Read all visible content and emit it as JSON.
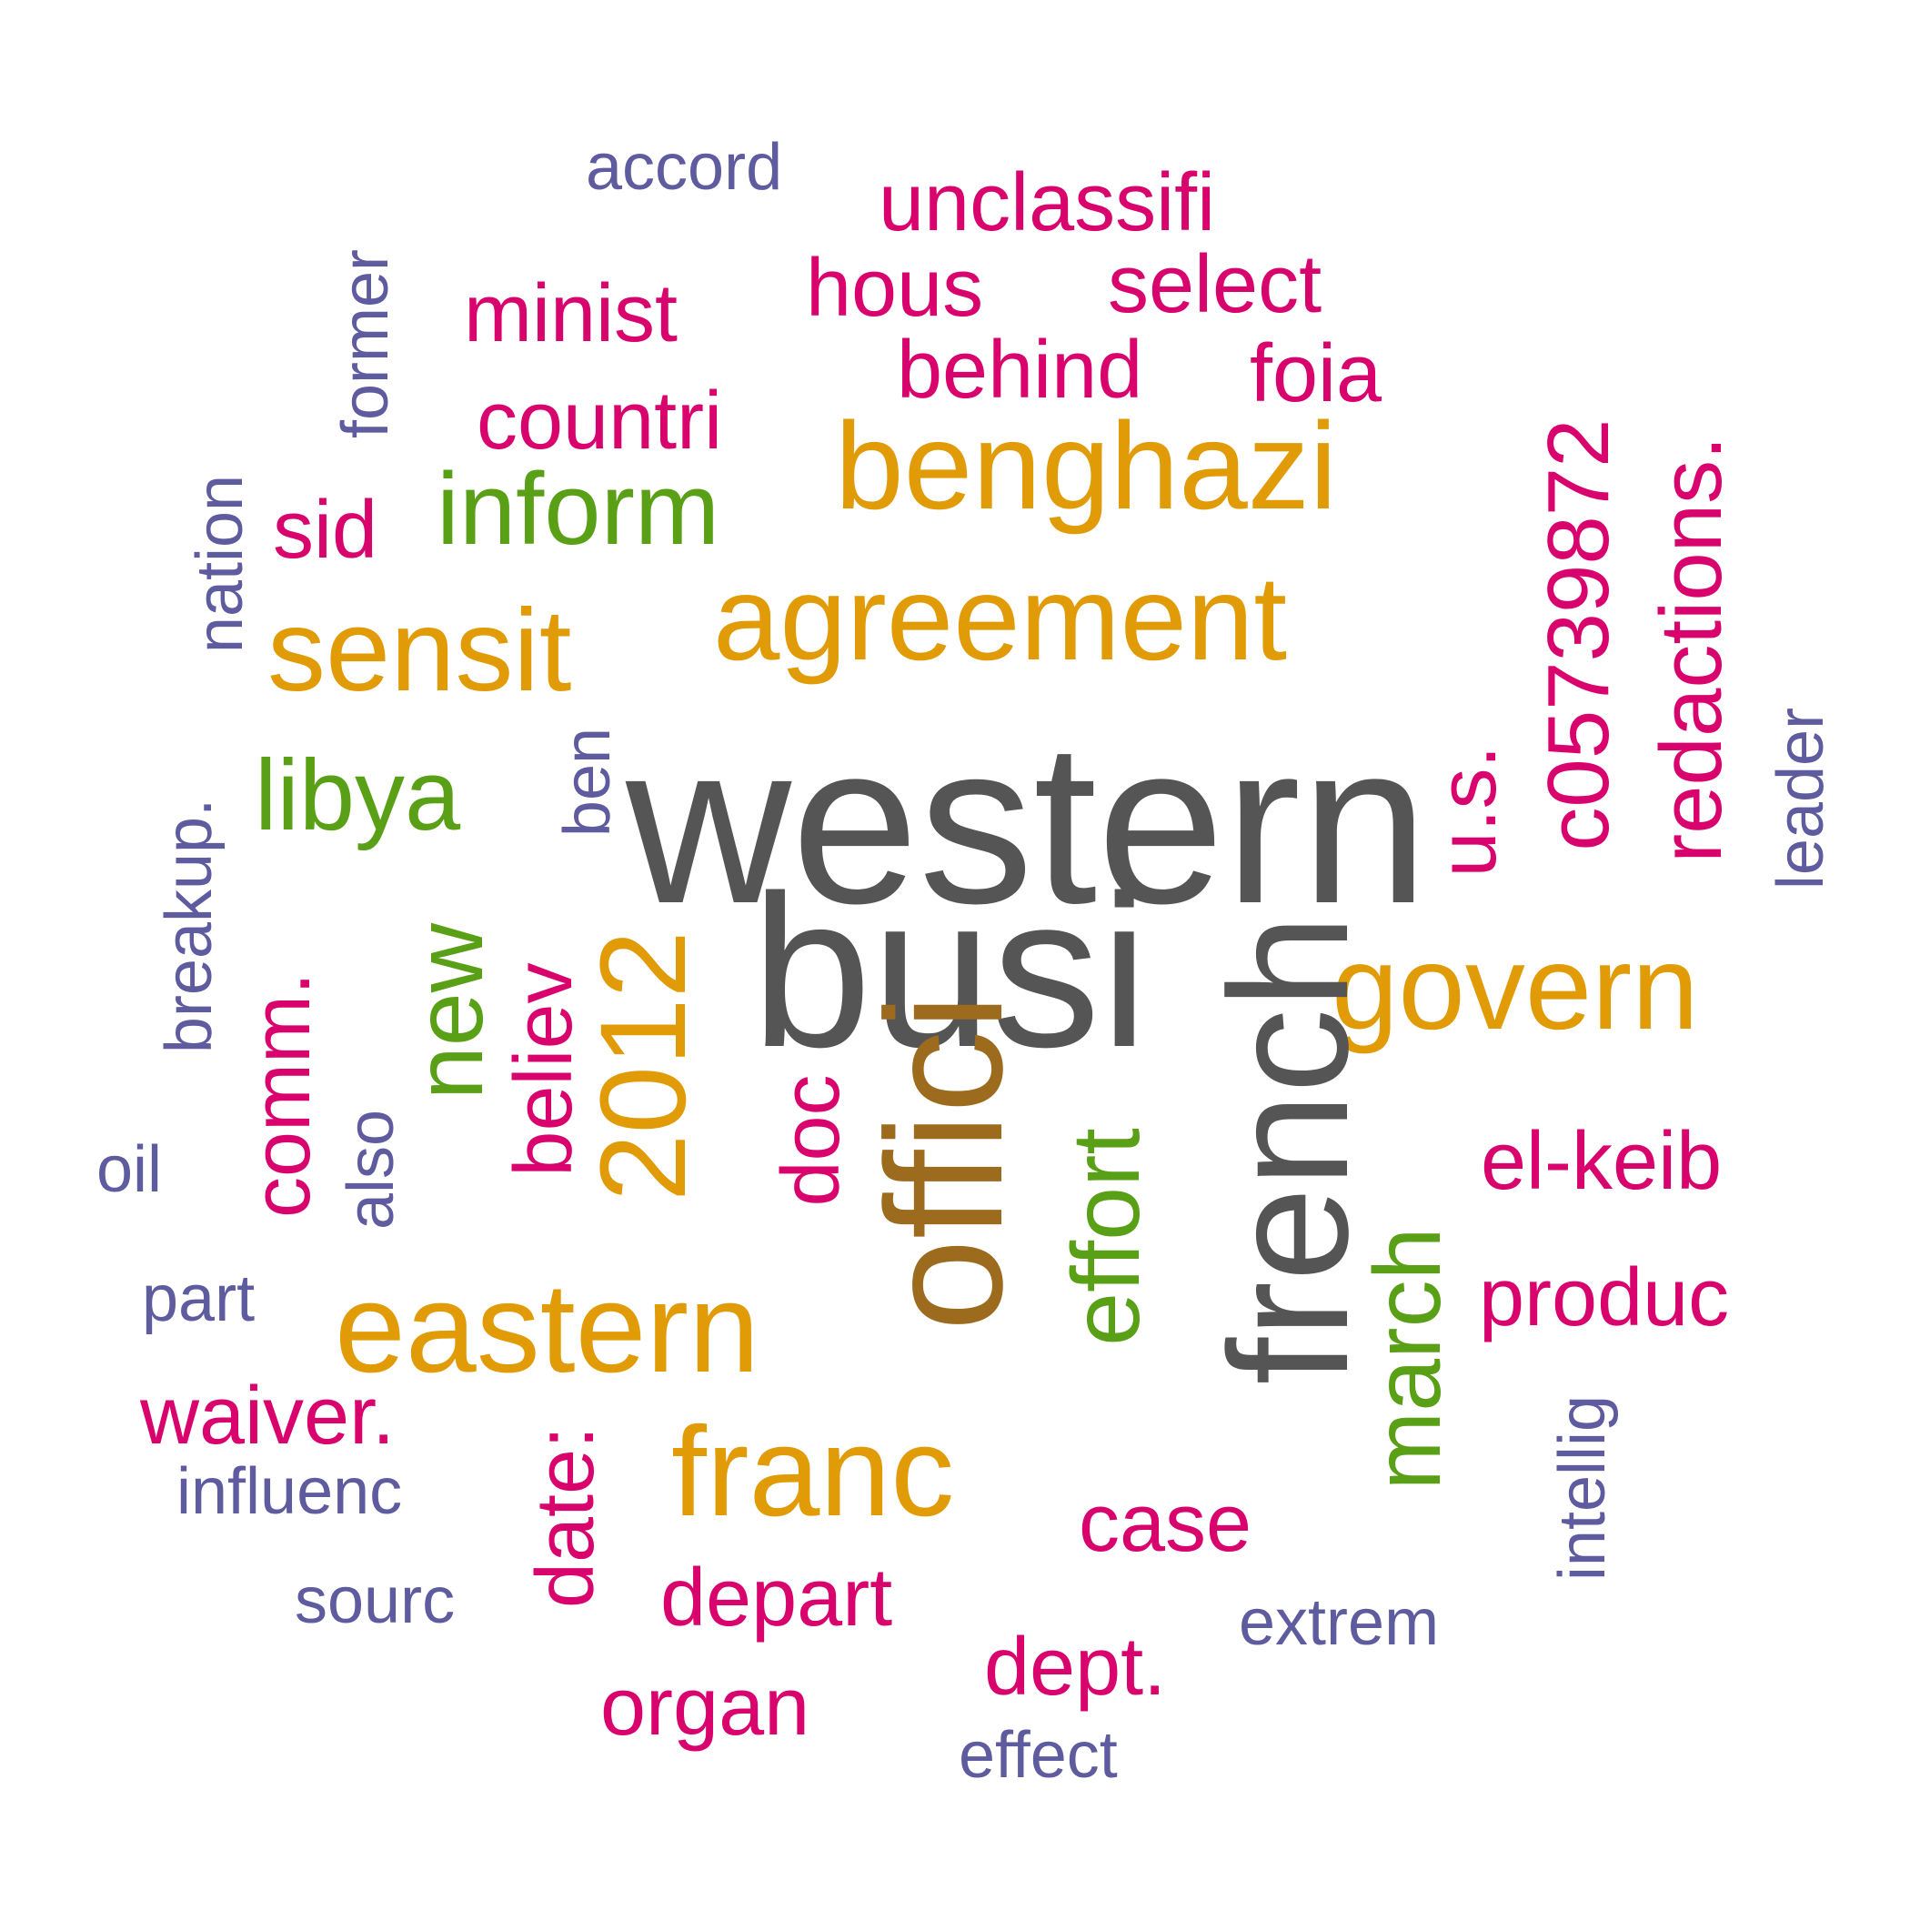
{
  "palette": {
    "gray": "#555555",
    "brown": "#9C6B1E",
    "gold": "#E09B07",
    "green": "#59A017",
    "magenta": "#D9036E",
    "purple": "#5E5B9F"
  },
  "words": [
    {
      "text": "western",
      "color": "gray"
    },
    {
      "text": "busi",
      "color": "gray"
    },
    {
      "text": "french",
      "color": "gray"
    },
    {
      "text": "offici",
      "color": "brown"
    },
    {
      "text": "agreement",
      "color": "gold"
    },
    {
      "text": "benghazi",
      "color": "gold"
    },
    {
      "text": "sensit",
      "color": "gold"
    },
    {
      "text": "eastern",
      "color": "gold"
    },
    {
      "text": "govern",
      "color": "gold"
    },
    {
      "text": "franc",
      "color": "gold"
    },
    {
      "text": "2012",
      "color": "gold"
    },
    {
      "text": "inform",
      "color": "green"
    },
    {
      "text": "libya",
      "color": "green"
    },
    {
      "text": "new",
      "color": "green"
    },
    {
      "text": "effort",
      "color": "green"
    },
    {
      "text": "march",
      "color": "green"
    },
    {
      "text": "unclassifi",
      "color": "magenta"
    },
    {
      "text": "select",
      "color": "magenta"
    },
    {
      "text": "hous",
      "color": "magenta"
    },
    {
      "text": "minist",
      "color": "magenta"
    },
    {
      "text": "behind",
      "color": "magenta"
    },
    {
      "text": "foia",
      "color": "magenta"
    },
    {
      "text": "countri",
      "color": "magenta"
    },
    {
      "text": "sid",
      "color": "magenta"
    },
    {
      "text": "c05739872",
      "color": "magenta"
    },
    {
      "text": "redactions.",
      "color": "magenta"
    },
    {
      "text": "u.s.",
      "color": "magenta"
    },
    {
      "text": "comm.",
      "color": "magenta"
    },
    {
      "text": "believ",
      "color": "magenta"
    },
    {
      "text": "doc",
      "color": "magenta"
    },
    {
      "text": "el-keib",
      "color": "magenta"
    },
    {
      "text": "produc",
      "color": "magenta"
    },
    {
      "text": "waiver.",
      "color": "magenta"
    },
    {
      "text": "date:",
      "color": "magenta"
    },
    {
      "text": "case",
      "color": "magenta"
    },
    {
      "text": "depart",
      "color": "magenta"
    },
    {
      "text": "dept.",
      "color": "magenta"
    },
    {
      "text": "organ",
      "color": "magenta"
    },
    {
      "text": "accord",
      "color": "purple"
    },
    {
      "text": "former",
      "color": "purple"
    },
    {
      "text": "nation",
      "color": "purple"
    },
    {
      "text": "ben",
      "color": "purple"
    },
    {
      "text": "breakup.",
      "color": "purple"
    },
    {
      "text": "oil",
      "color": "purple"
    },
    {
      "text": "also",
      "color": "purple"
    },
    {
      "text": "leader",
      "color": "purple"
    },
    {
      "text": "part",
      "color": "purple"
    },
    {
      "text": "influenc",
      "color": "purple"
    },
    {
      "text": "sourc",
      "color": "purple"
    },
    {
      "text": "extrem",
      "color": "purple"
    },
    {
      "text": "intellig",
      "color": "purple"
    },
    {
      "text": "effect",
      "color": "purple"
    }
  ]
}
